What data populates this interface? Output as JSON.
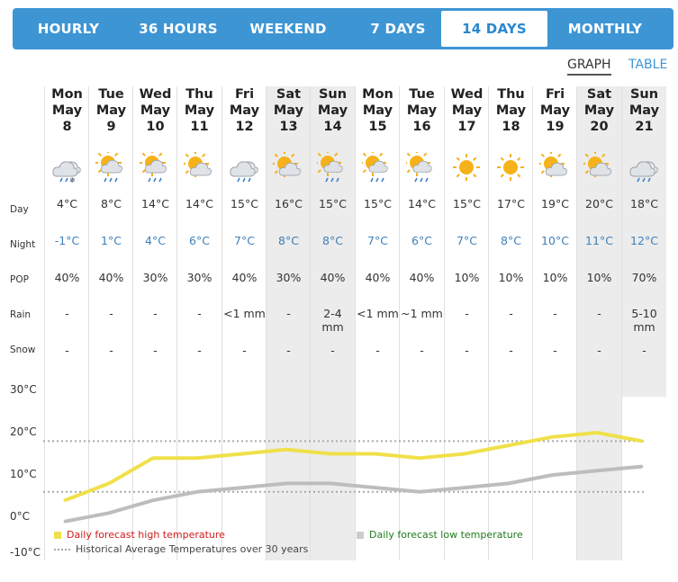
{
  "tabs": [
    "HOURLY",
    "36 HOURS",
    "WEEKEND",
    "7 DAYS",
    "14 DAYS",
    "MONTHLY"
  ],
  "active_tab": "14 DAYS",
  "views": {
    "graph": "GRAPH",
    "table": "TABLE",
    "active": "GRAPH"
  },
  "row_labels": {
    "day": "Day",
    "night": "Night",
    "pop": "POP",
    "rain": "Rain",
    "snow": "Snow"
  },
  "days": [
    {
      "dow": "Mon",
      "month": "May",
      "date": "8",
      "icon": "rain-snow-icon",
      "day": "4°C",
      "night": "-1°C",
      "pop": "40%",
      "rain": "-",
      "snow": "-",
      "weekend": false
    },
    {
      "dow": "Tue",
      "month": "May",
      "date": "9",
      "icon": "partly-sunny-rain-icon",
      "day": "8°C",
      "night": "1°C",
      "pop": "40%",
      "rain": "-",
      "snow": "-",
      "weekend": false
    },
    {
      "dow": "Wed",
      "month": "May",
      "date": "10",
      "icon": "partly-sunny-rain-icon",
      "day": "14°C",
      "night": "4°C",
      "pop": "30%",
      "rain": "-",
      "snow": "-",
      "weekend": false
    },
    {
      "dow": "Thu",
      "month": "May",
      "date": "11",
      "icon": "partly-cloudy-icon",
      "day": "14°C",
      "night": "6°C",
      "pop": "30%",
      "rain": "-",
      "snow": "-",
      "weekend": false
    },
    {
      "dow": "Fri",
      "month": "May",
      "date": "12",
      "icon": "cloudy-rain-icon",
      "day": "15°C",
      "night": "7°C",
      "pop": "40%",
      "rain": "<1 mm",
      "snow": "-",
      "weekend": false
    },
    {
      "dow": "Sat",
      "month": "May",
      "date": "13",
      "icon": "partly-cloudy-icon",
      "day": "16°C",
      "night": "8°C",
      "pop": "30%",
      "rain": "-",
      "snow": "-",
      "weekend": true
    },
    {
      "dow": "Sun",
      "month": "May",
      "date": "14",
      "icon": "sun-rain-icon",
      "day": "15°C",
      "night": "8°C",
      "pop": "40%",
      "rain": "2-4 mm",
      "snow": "-",
      "weekend": true
    },
    {
      "dow": "Mon",
      "month": "May",
      "date": "15",
      "icon": "sun-rain-icon",
      "day": "15°C",
      "night": "7°C",
      "pop": "40%",
      "rain": "<1 mm",
      "snow": "-",
      "weekend": false
    },
    {
      "dow": "Tue",
      "month": "May",
      "date": "16",
      "icon": "sun-rain-icon",
      "day": "14°C",
      "night": "6°C",
      "pop": "40%",
      "rain": "~1 mm",
      "snow": "-",
      "weekend": false
    },
    {
      "dow": "Wed",
      "month": "May",
      "date": "17",
      "icon": "sunny-icon",
      "day": "15°C",
      "night": "7°C",
      "pop": "10%",
      "rain": "-",
      "snow": "-",
      "weekend": false
    },
    {
      "dow": "Thu",
      "month": "May",
      "date": "18",
      "icon": "sunny-icon",
      "day": "17°C",
      "night": "8°C",
      "pop": "10%",
      "rain": "-",
      "snow": "-",
      "weekend": false
    },
    {
      "dow": "Fri",
      "month": "May",
      "date": "19",
      "icon": "partly-cloudy-icon",
      "day": "19°C",
      "night": "10°C",
      "pop": "10%",
      "rain": "-",
      "snow": "-",
      "weekend": false
    },
    {
      "dow": "Sat",
      "month": "May",
      "date": "20",
      "icon": "partly-cloudy-icon",
      "day": "20°C",
      "night": "11°C",
      "pop": "10%",
      "rain": "-",
      "snow": "-",
      "weekend": true
    },
    {
      "dow": "Sun",
      "month": "May",
      "date": "21",
      "icon": "cloudy-rain-icon",
      "day": "18°C",
      "night": "12°C",
      "pop": "70%",
      "rain": "5-10 mm",
      "snow": "-",
      "weekend": true
    }
  ],
  "chart_data": {
    "type": "line",
    "x": [
      "May 8",
      "May 9",
      "May 10",
      "May 11",
      "May 12",
      "May 13",
      "May 14",
      "May 15",
      "May 16",
      "May 17",
      "May 18",
      "May 19",
      "May 20",
      "May 21"
    ],
    "series": [
      {
        "name": "Daily forecast high temperature",
        "values": [
          4,
          8,
          14,
          14,
          15,
          16,
          15,
          15,
          14,
          15,
          17,
          19,
          20,
          18
        ],
        "color": "#f0e04a"
      },
      {
        "name": "Daily forecast low temperature",
        "values": [
          -1,
          1,
          4,
          6,
          7,
          8,
          8,
          7,
          6,
          7,
          8,
          10,
          11,
          12
        ],
        "color": "#bdbdbd"
      }
    ],
    "reference_lines": [
      {
        "name": "Historical Average Temperatures over 30 years",
        "values": [
          18,
          6
        ],
        "color": "#aaaaaa",
        "style": "dotted"
      }
    ],
    "y_ticks": [
      "30°C",
      "20°C",
      "10°C",
      "0°C",
      "-10°C"
    ],
    "ylim": [
      -10,
      30
    ],
    "legend": [
      {
        "label": "Daily forecast high temperature",
        "text_color": "#d11a1a",
        "swatch": "#f0e04a"
      },
      {
        "label": "Daily forecast low temperature",
        "text_color": "#1f7a1f",
        "swatch": "#cccccc"
      },
      {
        "label": "Historical Average Temperatures over 30 years",
        "text_color": "#444444",
        "swatch": "dotted"
      }
    ]
  }
}
